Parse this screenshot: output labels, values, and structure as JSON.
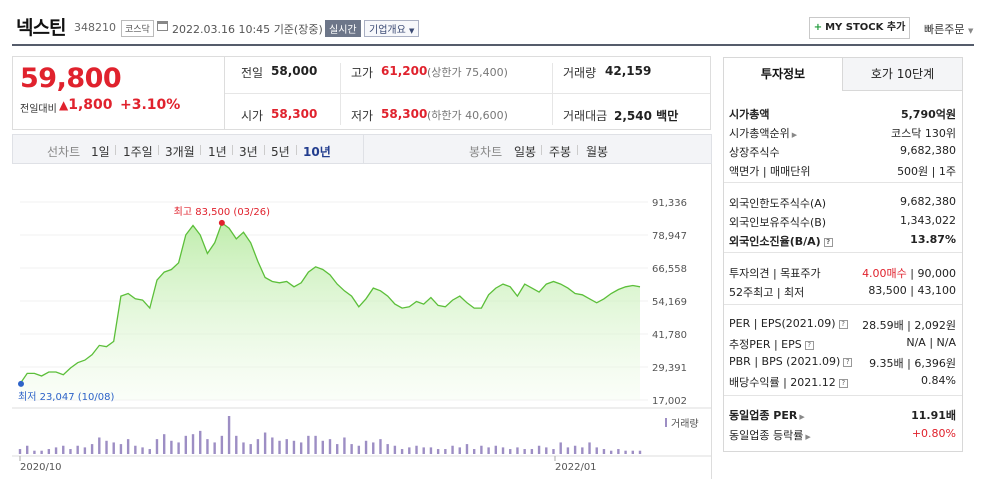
{
  "header": {
    "company": "넥스틴",
    "code": "348210",
    "market_badge": "코스닥",
    "datetime": "2022.03.16 10:45",
    "basis": "기준(장중)",
    "realtime_badge": "실시간",
    "corp_overview": "기업개요",
    "mystock_label": "MY STOCK 추가",
    "quick_order": "빠른주문"
  },
  "quote": {
    "price": "59,800",
    "change_label": "전일대비",
    "change_value": "1,800",
    "change_pct": "+3.10%",
    "prev_close_label": "전일",
    "prev_close": "58,000",
    "open_label": "시가",
    "open": "58,300",
    "high_label": "고가",
    "high": "61,200",
    "upper_limit": "(상한가 75,400)",
    "low_label": "저가",
    "low": "58,300",
    "lower_limit": "(하한가 40,600)",
    "volume_label": "거래량",
    "volume": "42,159",
    "amount_label": "거래대금",
    "amount": "2,540",
    "amount_unit": "백만"
  },
  "chart_tabs": {
    "line_label": "선차트",
    "line_items": [
      "1일",
      "1주일",
      "3개월",
      "1년",
      "3년",
      "5년",
      "10년"
    ],
    "line_selected": "10년",
    "candle_label": "봉차트",
    "candle_items": [
      "일봉",
      "주봉",
      "월봉"
    ]
  },
  "chart_data": {
    "type": "area",
    "y_ticks": [
      "91,336",
      "78,947",
      "66,558",
      "54,169",
      "41,780",
      "29,391",
      "17,002"
    ],
    "ylim": [
      17002,
      91336
    ],
    "x_ticks": [
      "2020/10",
      "2022/01"
    ],
    "max_label": "최고 83,500 (03/26)",
    "min_label": "최저 23,047 (10/08)",
    "volume_legend": "거래량",
    "series": [
      {
        "values": [
          23047,
          27000,
          27000,
          26000,
          27500,
          27500,
          26500,
          29000,
          31000,
          32000,
          34000,
          37500,
          37000,
          39000,
          56000,
          57000,
          55000,
          54500,
          51500,
          62000,
          65000,
          66000,
          68500,
          79000,
          82500,
          79000,
          72000,
          76000,
          83500,
          81500,
          77500,
          80000,
          76000,
          69000,
          63000,
          61500,
          61000,
          61500,
          59500,
          61000,
          65000,
          67000,
          66000,
          64000,
          60500,
          58000,
          56000,
          52000,
          55000,
          59000,
          58000,
          56000,
          53000,
          51500,
          52000,
          54000,
          53000,
          55500,
          52500,
          52000,
          54500,
          56000,
          53500,
          51500,
          51500,
          56500,
          59000,
          60500,
          59500,
          56000,
          60500,
          59000,
          57500,
          60500,
          61500,
          60500,
          59000,
          57000,
          56500,
          55000,
          53500,
          55000,
          57000,
          58500,
          59500,
          60000,
          59500
        ]
      }
    ],
    "volume": [
      3,
      5,
      2,
      2,
      3,
      4,
      5,
      3,
      5,
      4,
      6,
      10,
      8,
      7,
      6,
      9,
      5,
      4,
      3,
      9,
      12,
      8,
      7,
      11,
      12,
      14,
      9,
      7,
      11,
      23,
      11,
      7,
      6,
      9,
      13,
      10,
      8,
      9,
      8,
      7,
      11,
      11,
      8,
      9,
      6,
      10,
      6,
      5,
      8,
      7,
      9,
      6,
      5,
      3,
      4,
      5,
      4,
      4,
      3,
      3,
      5,
      4,
      6,
      3,
      5,
      4,
      5,
      4,
      3,
      4,
      3,
      3,
      5,
      4,
      3,
      7,
      4,
      5,
      4,
      7,
      4,
      3,
      2,
      3,
      2,
      2,
      2
    ]
  },
  "panel": {
    "tab_active": "투자정보",
    "tab_other": "호가 10단계",
    "rows": [
      {
        "label": "시가총액",
        "value": "5,790억원"
      },
      {
        "label": "시가총액순위",
        "value": "코스닥 130위"
      },
      {
        "label": "상장주식수",
        "value": "9,682,380"
      },
      {
        "label": "액면가 | 매매단위",
        "value": "500원 | 1주"
      },
      {
        "label": "외국인한도주식수(A)",
        "value": "9,682,380"
      },
      {
        "label": "외국인보유주식수(B)",
        "value": "1,343,022"
      },
      {
        "label": "외국인소진율(B/A)",
        "value": "13.87%"
      },
      {
        "label": "투자의견 | 목표주가",
        "value_red": "4.00매수",
        "value": "| 90,000"
      },
      {
        "label": "52주최고 | 최저",
        "value": "83,500 | 43,100"
      },
      {
        "label": "PER | EPS(2021.09)",
        "value": "28.59배 | 2,092원"
      },
      {
        "label": "추정PER | EPS",
        "value": "N/A | N/A"
      },
      {
        "label": "PBR | BPS (2021.09)",
        "value": "9.35배 | 6,396원"
      },
      {
        "label": "배당수익률 | 2021.12",
        "value": "0.84%"
      },
      {
        "label": "동일업종 PER",
        "value": "11.91배"
      },
      {
        "label": "동일업종 등락률",
        "value": "+0.80%"
      }
    ]
  },
  "colors": {
    "up_red": "#e0222d",
    "chart_line": "#5cbf3a",
    "volume_bar": "#9d8ec4",
    "nav_blue": "#223d8e"
  }
}
